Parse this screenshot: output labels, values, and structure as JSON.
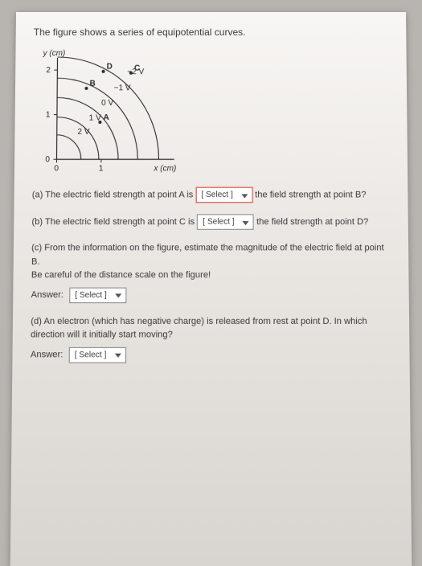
{
  "intro": "The figure shows a series of equipotential curves.",
  "figure": {
    "y_axis_label": "y (cm)",
    "x_axis_label": "x (cm)",
    "y_ticks": [
      "2",
      "1",
      "0"
    ],
    "x_ticks": [
      "0",
      "1"
    ],
    "curves": [
      {
        "label": "2 V",
        "r": 30
      },
      {
        "label": "1 V",
        "r": 52
      },
      {
        "label": "0 V",
        "r": 76
      },
      {
        "label": "−1 V",
        "r": 100
      },
      {
        "label": "−2 V",
        "r": 126
      }
    ],
    "points": [
      {
        "id": "A",
        "x": 56,
        "y": 48
      },
      {
        "id": "B",
        "x": 38,
        "y": 92
      },
      {
        "id": "C",
        "x": 96,
        "y": 112
      },
      {
        "id": "D",
        "x": 60,
        "y": 114
      }
    ],
    "axis_color": "#2b2b2b",
    "curve_color": "#2b2b2b",
    "font_size": 10
  },
  "questions": {
    "a": {
      "pre": "(a) The electric field strength at point A is",
      "post": "the field strength at point B?"
    },
    "b": {
      "pre": "(b) The electric field strength at point C is",
      "post": "the field strength at point D?"
    },
    "c": {
      "line1": "(c) From the information on the figure, estimate the magnitude of the electric field at point B.",
      "line2": "Be careful of the distance scale on the figure!",
      "answer_label": "Answer:"
    },
    "d": {
      "line1": "(d) An electron (which has negative charge) is released from rest at point D. In which direction will it initially start moving?",
      "answer_label": "Answer:"
    }
  },
  "select_placeholder": "[ Select ]"
}
